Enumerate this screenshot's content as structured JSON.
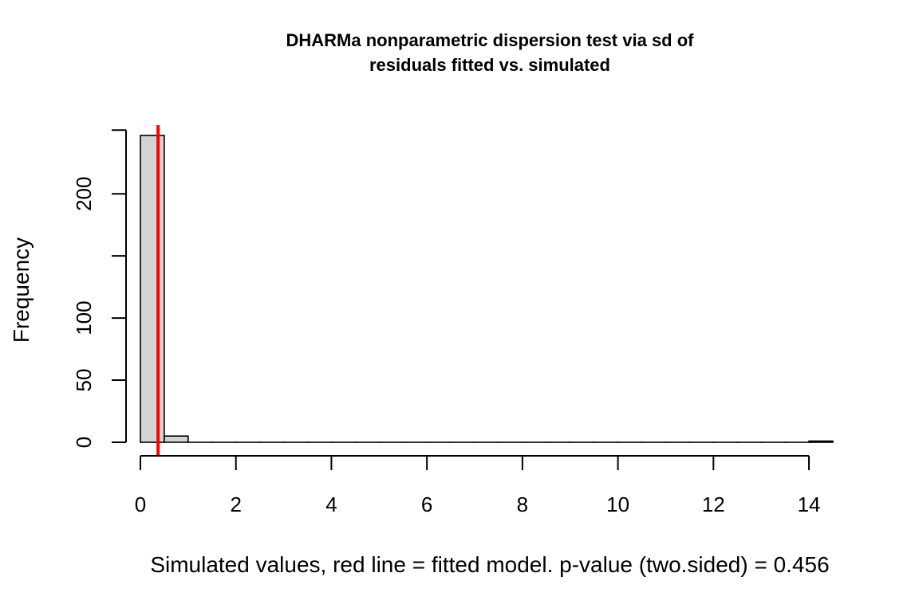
{
  "chart_data": {
    "type": "bar",
    "title_lines": [
      "DHARMa nonparametric dispersion test via sd of",
      "residuals fitted vs. simulated"
    ],
    "xlabel": "Simulated values, red line = fitted model. p-value (two.sided) = 0.456",
    "ylabel": "Frequency",
    "xlim": [
      0,
      14.5
    ],
    "ylim": [
      0,
      250
    ],
    "x_ticks": [
      0,
      2,
      4,
      6,
      8,
      10,
      12,
      14
    ],
    "y_ticks": [
      0,
      50,
      100,
      150,
      200
    ],
    "y_tick_labels": [
      "0",
      "50",
      "100",
      "",
      "200"
    ],
    "bins": [
      {
        "x0": 0.0,
        "x1": 0.5,
        "count": 247
      },
      {
        "x0": 0.5,
        "x1": 1.0,
        "count": 5
      },
      {
        "x0": 14.0,
        "x1": 14.5,
        "count": 1
      }
    ],
    "fitted_value": 0.37,
    "colors": {
      "bar_fill": "#d3d3d3",
      "bar_stroke": "#000000",
      "fitted_line": "#ff0000"
    },
    "grid": false,
    "legend": "none"
  }
}
